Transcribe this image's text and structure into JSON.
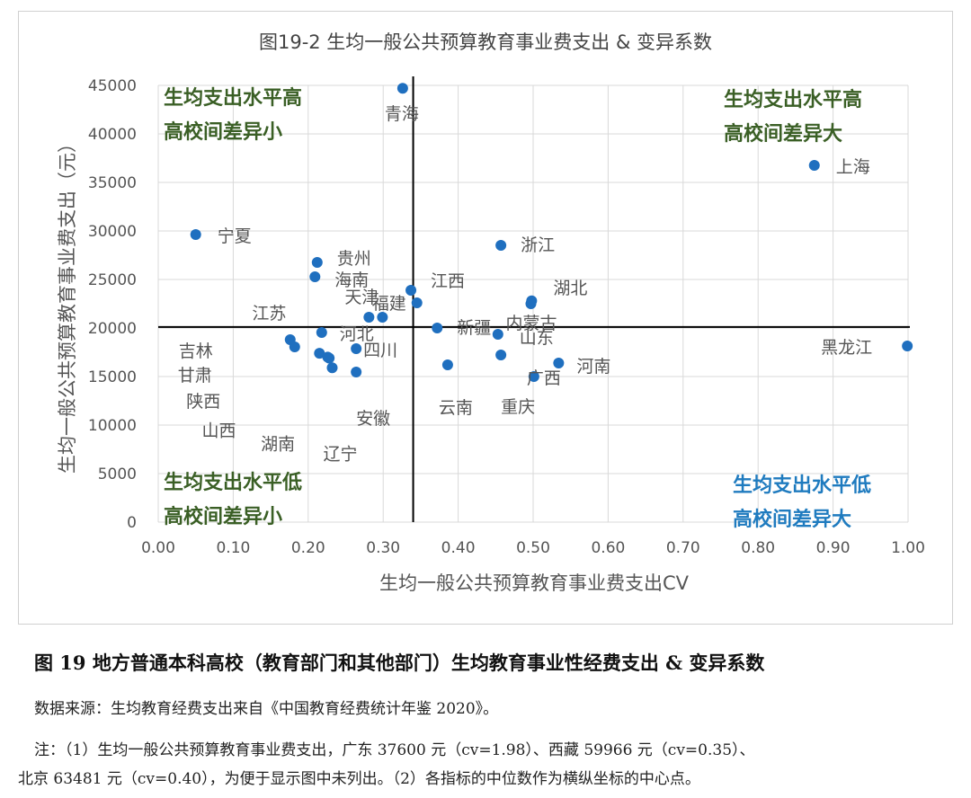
{
  "chart_data": {
    "type": "scatter",
    "title": "图19-2 生均一般公共预算教育事业费支出 & 变异系数",
    "xlabel": "生均一般公共预算教育事业费支出CV",
    "ylabel": "生均一般公共预算教育事业费支出（元）",
    "xlim": [
      0,
      1
    ],
    "ylim": [
      0,
      45000
    ],
    "xticks": [
      "0.00",
      "0.10",
      "0.20",
      "0.30",
      "0.40",
      "0.50",
      "0.60",
      "0.70",
      "0.80",
      "0.90",
      "1.00"
    ],
    "yticks": [
      "0",
      "5000",
      "10000",
      "15000",
      "20000",
      "25000",
      "30000",
      "35000",
      "40000",
      "45000"
    ],
    "grid": true,
    "median_lines": {
      "x": 0.34,
      "y": 20100
    },
    "point_color": "#1f6fbf",
    "quadrant_labels": [
      {
        "text1": "生均支出水平高",
        "text2": "高校间差异小",
        "color": "#3a5f25"
      },
      {
        "text1": "生均支出水平高",
        "text2": "高校间差异大",
        "color": "#3a5f25"
      },
      {
        "text1": "生均支出水平低",
        "text2": "高校间差异小",
        "color": "#3a5f25"
      },
      {
        "text1": "生均支出水平低",
        "text2": "高校间差异大",
        "color": "#1f7bbf"
      }
    ],
    "points": [
      {
        "name": "青海",
        "x": 0.326,
        "y": 44700
      },
      {
        "name": "上海",
        "x": 0.875,
        "y": 36760
      },
      {
        "name": "宁夏",
        "x": 0.05,
        "y": 29630
      },
      {
        "name": "浙江",
        "x": 0.457,
        "y": 28520
      },
      {
        "name": "贵州",
        "x": 0.212,
        "y": 26760
      },
      {
        "name": "海南",
        "x": 0.209,
        "y": 25280
      },
      {
        "name": "江西",
        "x": 0.337,
        "y": 23890
      },
      {
        "name": "湖北",
        "x": 0.498,
        "y": 22800
      },
      {
        "name": "内蒙古",
        "x": 0.497,
        "y": 22500
      },
      {
        "name": "福建",
        "x": 0.345,
        "y": 22590
      },
      {
        "name": "江苏",
        "x": 0.281,
        "y": 21110
      },
      {
        "name": "天津",
        "x": 0.299,
        "y": 21110
      },
      {
        "name": "新疆",
        "x": 0.372,
        "y": 20000
      },
      {
        "name": "河北",
        "x": 0.218,
        "y": 19540
      },
      {
        "name": "山东",
        "x": 0.453,
        "y": 19350
      },
      {
        "name": "吉林",
        "x": 0.176,
        "y": 18800
      },
      {
        "name": "黑龙江",
        "x": 0.999,
        "y": 18150
      },
      {
        "name": "甘肃",
        "x": 0.182,
        "y": 18060
      },
      {
        "name": "四川",
        "x": 0.264,
        "y": 17870
      },
      {
        "name": "陕西",
        "x": 0.215,
        "y": 17400
      },
      {
        "name": "重庆",
        "x": 0.457,
        "y": 17220
      },
      {
        "name": "山西",
        "x": 0.226,
        "y": 17000
      },
      {
        "name": "湖南",
        "x": 0.228,
        "y": 16900
      },
      {
        "name": "河南",
        "x": 0.534,
        "y": 16390
      },
      {
        "name": "云南",
        "x": 0.386,
        "y": 16200
      },
      {
        "name": "辽宁",
        "x": 0.232,
        "y": 15900
      },
      {
        "name": "安徽",
        "x": 0.264,
        "y": 15460
      },
      {
        "name": "广西",
        "x": 0.501,
        "y": 15000
      }
    ]
  },
  "caption": "图 19 地方普通本科高校（教育部门和其他部门）生均教育事业性经费支出 & 变异系数",
  "source": "数据来源：生均教育经费支出来自《中国教育经费统计年鉴 2020》。",
  "note1": "注：（1）生均一般公共预算教育事业费支出，广东 37600 元（cv=1.98）、西藏 59966 元（cv=0.35）、",
  "note2": "北京 63481 元（cv=0.40），为便于显示图中未列出。（2）各指标的中位数作为横纵坐标的中心点。"
}
